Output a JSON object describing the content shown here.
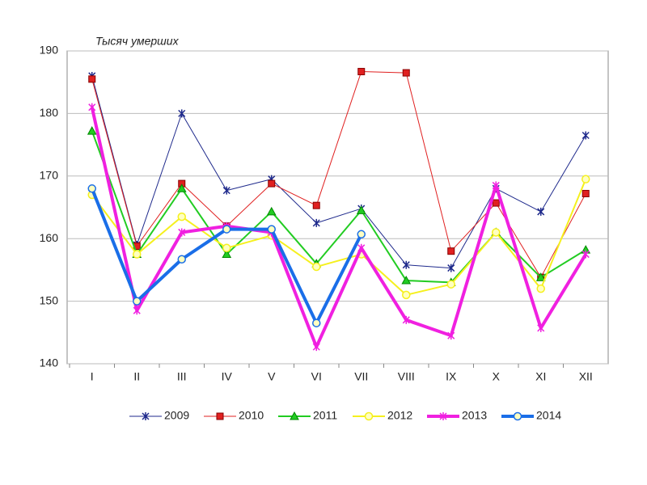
{
  "chart_data": {
    "type": "line",
    "y_label": "Тысяч умерших",
    "categories": [
      "I",
      "II",
      "III",
      "IV",
      "V",
      "VI",
      "VII",
      "VIII",
      "IX",
      "X",
      "XI",
      "XII"
    ],
    "ylim": [
      140,
      190
    ],
    "yticks": [
      140,
      150,
      160,
      170,
      180,
      190
    ],
    "grid": true,
    "legend": "bottom",
    "series": [
      {
        "name": "2009",
        "color": "#1f2a8c",
        "marker": "star",
        "width": 1,
        "values": [
          186,
          159,
          180,
          167.7,
          169.5,
          162.5,
          164.8,
          155.8,
          155.3,
          168,
          164.3,
          176.5
        ]
      },
      {
        "name": "2010",
        "color": "#e02020",
        "marker": "square",
        "width": 1,
        "values": [
          185.5,
          158.8,
          168.8,
          162,
          168.8,
          165.3,
          186.7,
          186.5,
          158,
          165.7,
          153.8,
          167.2
        ]
      },
      {
        "name": "2011",
        "color": "#22cc22",
        "marker": "triangle",
        "width": 2,
        "values": [
          177.2,
          157.5,
          168,
          157.5,
          164.3,
          156,
          164.5,
          153.3,
          153,
          161,
          153.8,
          158.2
        ]
      },
      {
        "name": "2012",
        "color": "#f5f01e",
        "marker": "circle",
        "width": 2,
        "values": [
          167,
          157.5,
          163.5,
          158.5,
          160.5,
          155.5,
          157.5,
          151,
          152.7,
          161,
          152,
          169.5
        ]
      },
      {
        "name": "2013",
        "color": "#f020e0",
        "marker": "star",
        "width": 4,
        "values": [
          181,
          148.5,
          161,
          162,
          161,
          142.7,
          158.5,
          147,
          144.5,
          168.5,
          145.7,
          157.5
        ]
      },
      {
        "name": "2014",
        "color": "#1a6ee8",
        "marker": "circle",
        "width": 4,
        "values": [
          168,
          150,
          156.7,
          161.5,
          161.5,
          146.5,
          160.7,
          null,
          null,
          null,
          null,
          null
        ]
      }
    ]
  }
}
